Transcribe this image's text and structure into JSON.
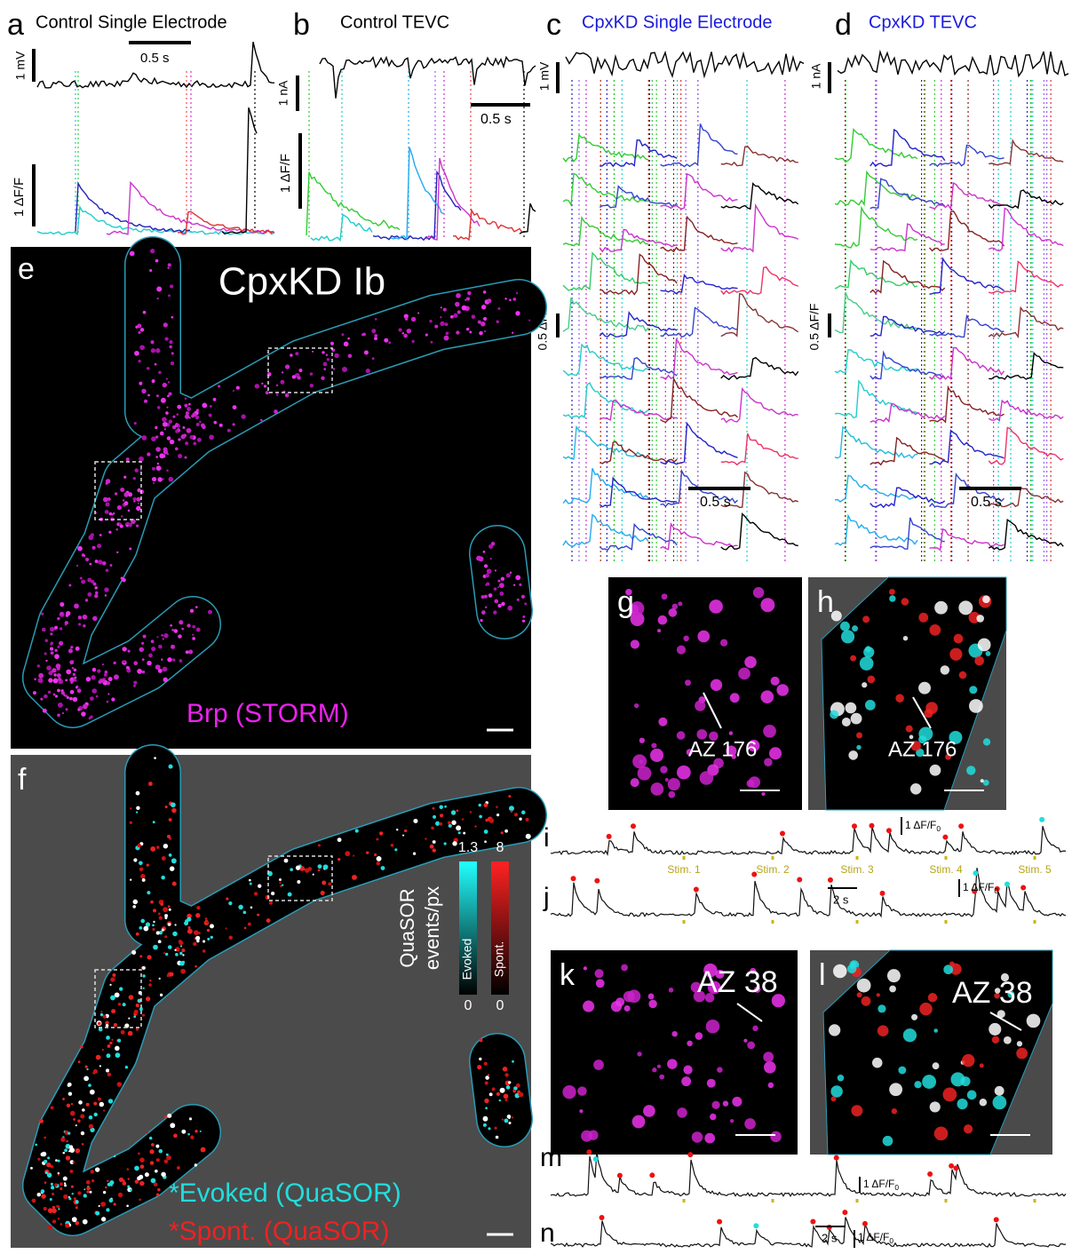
{
  "panels": {
    "a": {
      "label": "a",
      "title": "Control Single Electrode",
      "voltage_scale": "1 mV",
      "time_scale": "0.5 s",
      "dff_scale": "1 ΔF/F"
    },
    "b": {
      "label": "b",
      "title": "Control TEVC",
      "current_scale": "1 nA",
      "time_scale": "0.5 s",
      "dff_scale": "1 ΔF/F"
    },
    "c": {
      "label": "c",
      "title": "CpxKD Single Electrode",
      "voltage_scale": "1 mV",
      "dff_scale": "0.5 ΔF/F",
      "time_scale": "0.5 s"
    },
    "d": {
      "label": "d",
      "title": "CpxKD TEVC",
      "current_scale": "1 nA",
      "dff_scale": "0.5 ΔF/F",
      "time_scale": "0.5 s"
    },
    "e": {
      "label": "e",
      "title": "CpxKD Ib",
      "stain": "Brp (STORM)"
    },
    "f": {
      "label": "f",
      "colorbar_title": [
        "QuaSOR",
        "events/px"
      ],
      "evoked_max": "1.3",
      "spont_max": "8",
      "evoked_bar": "Evoked",
      "spont_bar": "Spont.",
      "evoked_min": "0",
      "spont_min": "0",
      "legend": [
        "*Evoked (QuaSOR)",
        "*Spont. (QuaSOR)"
      ]
    },
    "g": {
      "label": "g",
      "annotation": "AZ 176"
    },
    "h": {
      "label": "h",
      "annotation": "AZ 176"
    },
    "i": {
      "label": "i",
      "scale": "1 ΔF/F",
      "scale_sub": "0",
      "stims": [
        "Stim. 1",
        "Stim. 2",
        "Stim. 3",
        "Stim. 4",
        "Stim. 5"
      ]
    },
    "j": {
      "label": "j",
      "time_scale": "2 s",
      "scale": "1 ΔF/F",
      "scale_sub": "0"
    },
    "k": {
      "label": "k",
      "annotation": "AZ 38"
    },
    "l": {
      "label": "l",
      "annotation": "AZ 38"
    },
    "m": {
      "label": "m",
      "scale": "1 ΔF/F",
      "scale_sub": "0"
    },
    "n": {
      "label": "n",
      "time_scale": "2 s",
      "scale": "1 ΔF/F",
      "scale_sub": "0"
    }
  }
}
